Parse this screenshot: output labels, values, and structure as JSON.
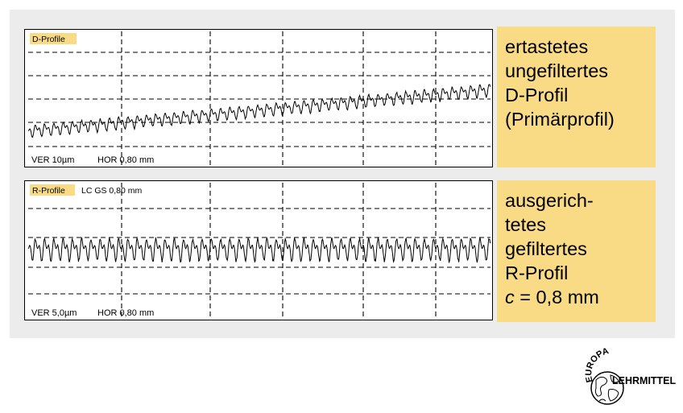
{
  "panels": [
    {
      "tag": "D-Profile",
      "info": "",
      "ver": "VER 10µm",
      "hor": "HOR 0,80 mm",
      "caption": [
        "ertastetes",
        "ungefiltertes",
        "D-Profil",
        "(Primärprofil)"
      ],
      "tag_color": "#fadb85"
    },
    {
      "tag": "R-Profile",
      "info": "LC GS 0,80 mm",
      "ver": "VER 5,0µm",
      "hor": "HOR 0,80 mm",
      "caption_lines": [
        "ausgerich-",
        "tetes",
        "gefiltertes",
        "R-Profil"
      ],
      "caption_formula": {
        "symbol": "c",
        "rest": " = 0,8 mm"
      },
      "tag_color": "#fadb85"
    }
  ],
  "logo": {
    "arc_text": "EUROPA",
    "brand_text": "LEHRMITTEL",
    "icon": "globe-icon"
  },
  "colors": {
    "panel_background": "#ececec",
    "caption_background": "#fadb85",
    "line": "#000000"
  }
}
